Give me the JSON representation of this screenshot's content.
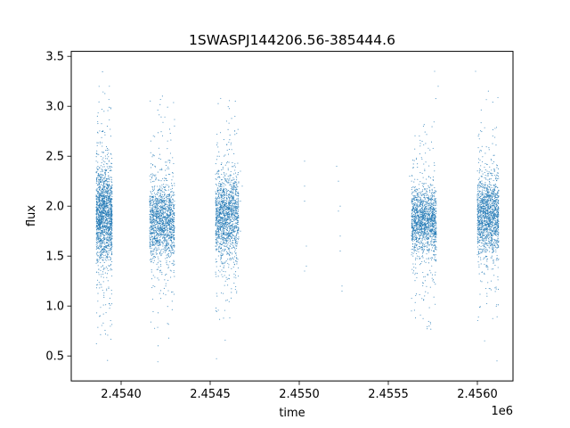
{
  "chart_data": {
    "type": "scatter",
    "title": "1SWASPJ144206.56-385444.6",
    "xlabel": "time",
    "ylabel": "flux",
    "x_offset_label": "1e6",
    "xlim": [
      2.45372,
      2.4562
    ],
    "ylim": [
      0.25,
      3.55
    ],
    "x_ticks": [
      {
        "value": 2.454,
        "label": "2.4540"
      },
      {
        "value": 2.4545,
        "label": "2.4545"
      },
      {
        "value": 2.455,
        "label": "2.4550"
      },
      {
        "value": 2.4555,
        "label": "2.4555"
      },
      {
        "value": 2.456,
        "label": "2.4560"
      }
    ],
    "y_ticks": [
      {
        "value": 0.5,
        "label": "0.5"
      },
      {
        "value": 1.0,
        "label": "1.0"
      },
      {
        "value": 1.5,
        "label": "1.5"
      },
      {
        "value": 2.0,
        "label": "2.0"
      },
      {
        "value": 2.5,
        "label": "2.5"
      },
      {
        "value": 3.0,
        "label": "3.0"
      },
      {
        "value": 3.5,
        "label": "3.5"
      }
    ],
    "grid": false,
    "marker_color": "#1f77b4",
    "series": [
      {
        "clusters": [
          {
            "x_range": [
              2.45386,
              2.45395
            ],
            "center": 1.9,
            "core_spread": 0.22,
            "y_range": [
              0.4,
              3.4
            ],
            "count": 1700
          },
          {
            "x_range": [
              2.45416,
              2.4543
            ],
            "center": 1.85,
            "core_spread": 0.18,
            "y_range": [
              0.4,
              3.15
            ],
            "count": 1500
          },
          {
            "x_range": [
              2.45453,
              2.45466
            ],
            "center": 1.9,
            "core_spread": 0.2,
            "y_range": [
              0.4,
              3.35
            ],
            "count": 1500
          },
          {
            "x_range": [
              2.45563,
              2.45577
            ],
            "center": 1.85,
            "core_spread": 0.16,
            "y_range": [
              0.5,
              3.35
            ],
            "count": 1500
          },
          {
            "x_range": [
              2.456,
              2.45612
            ],
            "center": 1.9,
            "core_spread": 0.18,
            "y_range": [
              0.5,
              3.35
            ],
            "count": 1500
          }
        ],
        "sparse_points": [
          [
            2.45467,
            2.35
          ],
          [
            2.45467,
            2.05
          ],
          [
            2.45467,
            1.75
          ],
          [
            2.45468,
            2.2
          ],
          [
            2.45503,
            2.45
          ],
          [
            2.45503,
            2.2
          ],
          [
            2.45503,
            2.05
          ],
          [
            2.45504,
            1.6
          ],
          [
            2.45504,
            1.4
          ],
          [
            2.45503,
            1.35
          ],
          [
            2.45521,
            2.4
          ],
          [
            2.45522,
            2.25
          ],
          [
            2.45522,
            1.95
          ],
          [
            2.45523,
            1.7
          ],
          [
            2.45523,
            1.55
          ],
          [
            2.45524,
            1.2
          ],
          [
            2.45524,
            1.15
          ],
          [
            2.45523,
            2.0
          ],
          [
            2.45562,
            2.3
          ],
          [
            2.45563,
            0.95
          ],
          [
            2.45578,
            3.2
          ],
          [
            2.45576,
            3.35
          ],
          [
            2.45599,
            3.35
          ],
          [
            2.45611,
            0.45
          ]
        ]
      }
    ]
  }
}
